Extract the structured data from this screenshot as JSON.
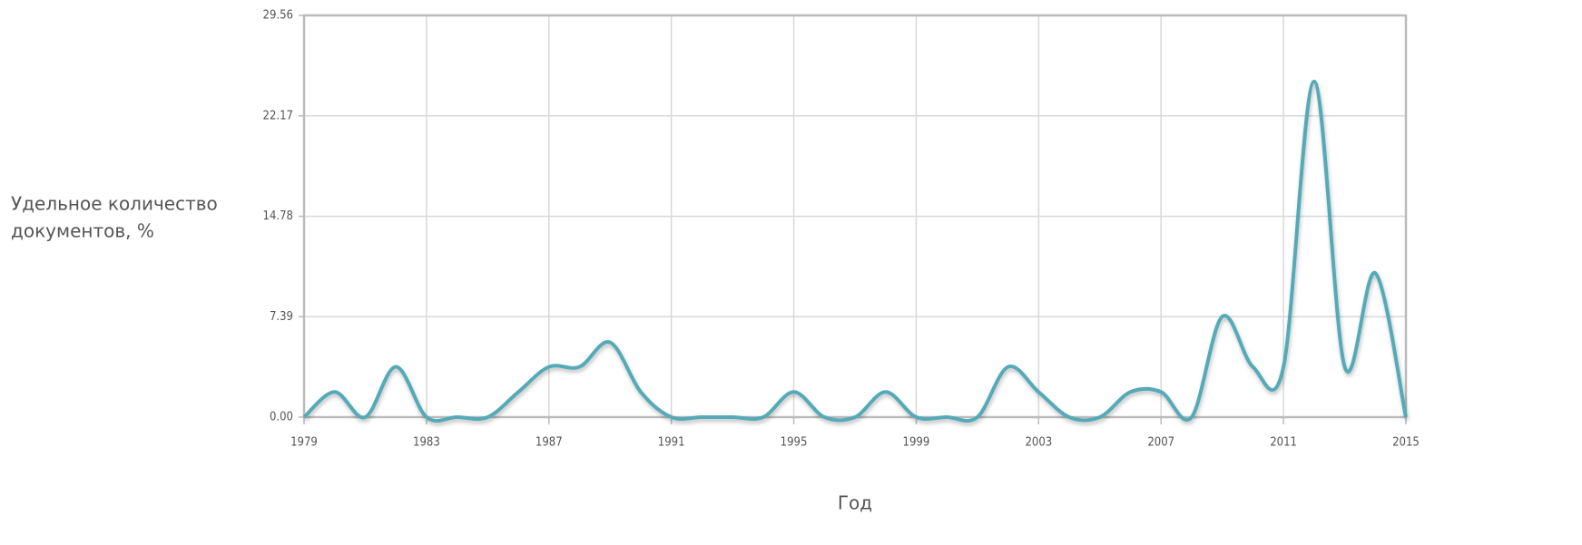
{
  "chart_data": {
    "type": "line",
    "ylabel": [
      "Удельное количество",
      "документов, %"
    ],
    "xlabel": "Год",
    "x": [
      1979,
      1980,
      1981,
      1982,
      1983,
      1984,
      1985,
      1986,
      1987,
      1988,
      1989,
      1990,
      1991,
      1992,
      1993,
      1994,
      1995,
      1996,
      1997,
      1998,
      1999,
      2000,
      2001,
      2002,
      2003,
      2004,
      2005,
      2006,
      2007,
      2008,
      2009,
      2010,
      2011,
      2012,
      2013,
      2014,
      2015
    ],
    "series": [
      {
        "color": "#55aab8",
        "values": [
          0,
          1.85,
          0,
          3.7,
          0,
          0,
          0,
          1.85,
          3.7,
          3.7,
          5.5,
          1.85,
          0,
          0,
          0,
          0,
          1.85,
          0,
          0,
          1.85,
          0,
          0,
          0,
          3.7,
          1.85,
          0,
          0,
          1.85,
          1.85,
          0,
          7.4,
          3.7,
          3.7,
          24.7,
          3.7,
          10.6,
          0
        ]
      }
    ],
    "xlim": [
      1979,
      2015
    ],
    "xticks": [
      1979,
      1983,
      1987,
      1991,
      1995,
      1999,
      2003,
      2007,
      2011,
      2015
    ],
    "ylim": [
      0,
      29.56
    ],
    "yticks": [
      {
        "value": 0,
        "label": "0.00"
      },
      7.39,
      14.78,
      22.17,
      29.56
    ],
    "grid": true
  }
}
